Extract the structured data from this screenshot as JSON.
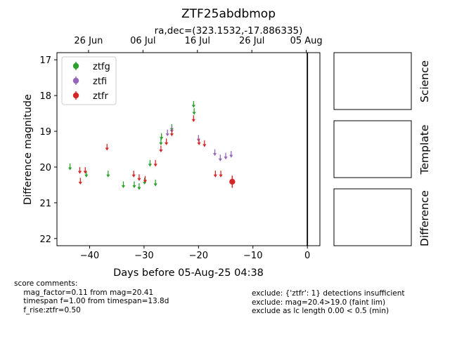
{
  "chart_data": {
    "type": "scatter",
    "title": "ZTF25abdbmop",
    "subtitle": "ra,dec=(323.1532,-17.886335)",
    "xlabel": "Days before 05-Aug-25 04:38",
    "ylabel": "Difference magnitude",
    "xlim": [
      -46,
      2.3
    ],
    "ylim": [
      22.2,
      16.8
    ],
    "y_inverted": true,
    "x_ticks": [
      -40,
      -30,
      -20,
      -10,
      0
    ],
    "y_ticks": [
      17,
      18,
      19,
      20,
      21,
      22
    ],
    "top_axis_ticks": [
      {
        "x": -40.2,
        "label": "26 Jun"
      },
      {
        "x": -30.2,
        "label": "06 Jul"
      },
      {
        "x": -20.2,
        "label": "16 Jul"
      },
      {
        "x": -10.2,
        "label": "26 Jul"
      },
      {
        "x": -0.2,
        "label": "05 Aug"
      }
    ],
    "vertical_line_x": 0,
    "legend_position": "upper-left",
    "series": [
      {
        "name": "ztfg",
        "color": "#2ca02c",
        "upper_limits": [
          {
            "x": -43.6,
            "y": 20.0
          },
          {
            "x": -40.6,
            "y": 20.2
          },
          {
            "x": -36.6,
            "y": 20.2
          },
          {
            "x": -33.8,
            "y": 20.5
          },
          {
            "x": -31.8,
            "y": 20.5
          },
          {
            "x": -30.9,
            "y": 20.55
          },
          {
            "x": -29.9,
            "y": 20.4
          },
          {
            "x": -28.9,
            "y": 19.9
          },
          {
            "x": -27.9,
            "y": 20.45
          },
          {
            "x": -26.9,
            "y": 19.3
          },
          {
            "x": -26.8,
            "y": 19.15
          },
          {
            "x": -24.9,
            "y": 18.9
          },
          {
            "x": -20.9,
            "y": 18.25
          },
          {
            "x": -20.8,
            "y": 18.45
          }
        ],
        "detections": []
      },
      {
        "name": "ztfi",
        "color": "#9467bd",
        "upper_limits": [
          {
            "x": -25.7,
            "y": 19.05
          },
          {
            "x": -24.9,
            "y": 18.95
          },
          {
            "x": -20.0,
            "y": 19.2
          },
          {
            "x": -17.0,
            "y": 19.6
          },
          {
            "x": -16.0,
            "y": 19.75
          },
          {
            "x": -15.0,
            "y": 19.7
          },
          {
            "x": -14.0,
            "y": 19.65
          }
        ],
        "detections": []
      },
      {
        "name": "ztfr",
        "color": "#d62728",
        "upper_limits": [
          {
            "x": -41.8,
            "y": 20.1
          },
          {
            "x": -41.7,
            "y": 20.4
          },
          {
            "x": -40.8,
            "y": 20.1
          },
          {
            "x": -36.8,
            "y": 19.45
          },
          {
            "x": -31.9,
            "y": 20.2
          },
          {
            "x": -30.9,
            "y": 20.3
          },
          {
            "x": -29.8,
            "y": 20.35
          },
          {
            "x": -27.9,
            "y": 19.9
          },
          {
            "x": -26.9,
            "y": 19.5
          },
          {
            "x": -25.9,
            "y": 19.3
          },
          {
            "x": -24.9,
            "y": 19.05
          },
          {
            "x": -20.9,
            "y": 18.65
          },
          {
            "x": -19.9,
            "y": 19.3
          },
          {
            "x": -18.9,
            "y": 19.35
          },
          {
            "x": -16.9,
            "y": 20.2
          },
          {
            "x": -15.9,
            "y": 20.2
          }
        ],
        "detections": [
          {
            "x": -13.8,
            "y": 20.41,
            "err": 0.17
          }
        ]
      }
    ]
  },
  "panels": {
    "science_label": "Science",
    "template_label": "Template",
    "difference_label": "Difference"
  },
  "comments": {
    "left": "score comments:\n    mag_factor=0.11 from mag=20.41\n    timespan f=1.00 from timespan=13.8d\n    f_rise:ztfr=0.50",
    "right": "exclude: {'ztfr': 1} detections insufficient\nexclude: mag=20.4>19.0 (faint lim)\nexclude as lc length 0.00 < 0.5 (min)"
  }
}
